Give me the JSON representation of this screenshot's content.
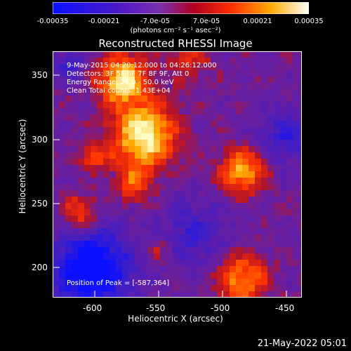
{
  "colorbar": {
    "ticks": [
      "-0.00035",
      "-0.00021",
      "-7.0e-05",
      "7.0e-05",
      "0.00021",
      "0.00035"
    ],
    "unit_label": "(photons cm⁻² s⁻¹ asec⁻²)",
    "stops": [
      "#0a10ff",
      "#4a18c8",
      "#7a30b0",
      "#b00020",
      "#ff3000",
      "#ffaa00",
      "#ffffff"
    ]
  },
  "title": "Reconstructed RHESSI Image",
  "info": {
    "time_range": "9-May-2015 04:20:12.000 to 04:26:12.000",
    "detectors": "Detectors: 3F 5F 6F 7F 8F 9F, Att 0",
    "energy": "Energy Range: 25.0 - 50.0 keV",
    "clean": "Clean     Total counts: 1.43E+04",
    "peak": "Position of Peak = [-587,364]"
  },
  "axes": {
    "xlabel": "Heliocentric X (arcsec)",
    "ylabel": "Heliocentric Y (arcsec)",
    "xticks": [
      "-600",
      "-550",
      "-500",
      "-450"
    ],
    "yticks": [
      "350",
      "300",
      "250",
      "200"
    ]
  },
  "timestamp": "21-May-2022 05:01"
}
